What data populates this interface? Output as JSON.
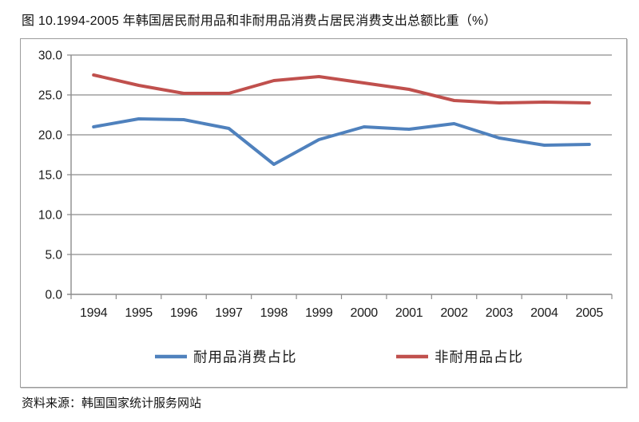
{
  "page": {
    "title": "图 10.1994-2005 年韩国居民耐用品和非耐用品消费占居民消费支出总额比重（%）",
    "source": "资料来源：韩国国家统计服务网站"
  },
  "chart_data": {
    "type": "line",
    "title": "图 10.1994-2005 年韩国居民耐用品和非耐用品消费占居民消费支出总额比重（%）",
    "categories": [
      "1994",
      "1995",
      "1996",
      "1997",
      "1998",
      "1999",
      "2000",
      "2001",
      "2002",
      "2003",
      "2004",
      "2005"
    ],
    "series": [
      {
        "id": "durables",
        "name": "耐用品消费占比",
        "color": "#4F81BD",
        "values": [
          21.0,
          22.0,
          21.9,
          20.8,
          16.3,
          19.4,
          21.0,
          20.7,
          21.4,
          19.6,
          18.7,
          18.8
        ]
      },
      {
        "id": "non-durables",
        "name": "非耐用品占比",
        "color": "#C0504D",
        "values": [
          27.5,
          26.2,
          25.2,
          25.2,
          26.8,
          27.3,
          26.5,
          25.7,
          24.3,
          24.0,
          24.1,
          24.0
        ]
      }
    ],
    "xlabel": "",
    "ylabel": "",
    "ylim": [
      0,
      30
    ],
    "ytick_step": 5,
    "ytick_labels": [
      "0.0",
      "5.0",
      "10.0",
      "15.0",
      "20.0",
      "25.0",
      "30.0"
    ],
    "grid": true,
    "legend_position": "bottom",
    "axis_color": "#8C8C8C",
    "label_color": "#1A1A1A"
  }
}
